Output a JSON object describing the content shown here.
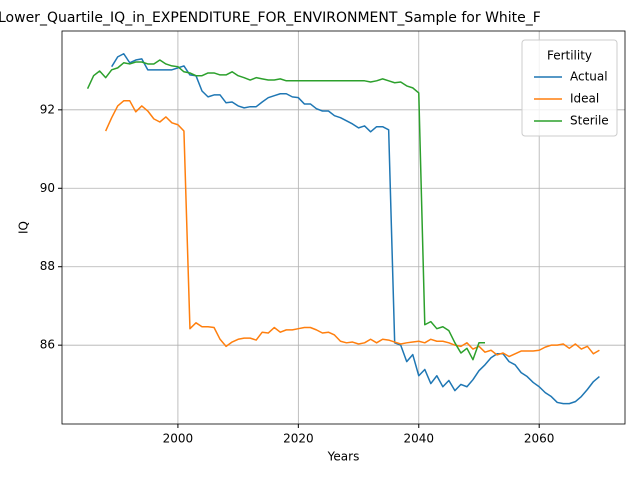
{
  "chart_data": {
    "type": "line",
    "title": "Lower_Quartile_IQ_in_EXPENDITURE_FOR_ENVIRONMENT_Sample for White_F",
    "xlabel": "Years",
    "ylabel": "IQ",
    "x": [
      1985,
      1986,
      1987,
      1988,
      1989,
      1990,
      1991,
      1992,
      1993,
      1994,
      1995,
      1996,
      1997,
      1998,
      1999,
      2000,
      2001,
      2002,
      2003,
      2004,
      2005,
      2006,
      2007,
      2008,
      2009,
      2010,
      2011,
      2012,
      2013,
      2014,
      2015,
      2016,
      2017,
      2018,
      2019,
      2020,
      2021,
      2022,
      2023,
      2024,
      2025,
      2026,
      2027,
      2028,
      2029,
      2030,
      2031,
      2032,
      2033,
      2034,
      2035,
      2036,
      2037,
      2038,
      2039,
      2040,
      2041,
      2042,
      2043,
      2044,
      2045,
      2046,
      2047,
      2048,
      2049,
      2050,
      2051,
      2052,
      2053,
      2054,
      2055,
      2056,
      2057,
      2058,
      2059,
      2060,
      2061,
      2062,
      2063,
      2064,
      2065,
      2066,
      2067,
      2068,
      2069,
      2070
    ],
    "series": [
      {
        "name": "Actual",
        "color": "#1f77b4",
        "values": [
          null,
          null,
          null,
          null,
          93.1,
          93.35,
          93.43,
          93.2,
          93.27,
          93.3,
          93.02,
          93.02,
          93.02,
          93.02,
          93.02,
          93.07,
          93.12,
          92.89,
          92.87,
          92.48,
          92.33,
          92.38,
          92.38,
          92.18,
          92.2,
          92.1,
          92.05,
          92.08,
          92.08,
          92.2,
          92.31,
          92.36,
          92.41,
          92.41,
          92.33,
          92.31,
          92.15,
          92.15,
          92.03,
          91.97,
          91.97,
          91.85,
          91.8,
          91.72,
          91.64,
          91.54,
          91.59,
          91.44,
          91.57,
          91.57,
          91.49,
          86.06,
          86.0,
          85.58,
          85.76,
          85.22,
          85.38,
          85.02,
          85.22,
          84.94,
          85.1,
          84.84,
          85.0,
          84.94,
          85.12,
          85.35,
          85.5,
          85.68,
          85.78,
          85.78,
          85.58,
          85.5,
          85.3,
          85.2,
          85.05,
          84.94,
          84.79,
          84.69,
          84.54,
          84.51,
          84.51,
          84.56,
          84.69,
          84.87,
          85.07,
          85.2
        ]
      },
      {
        "name": "Ideal",
        "color": "#ff7f0e",
        "values": [
          null,
          null,
          null,
          91.46,
          91.8,
          92.1,
          92.23,
          92.23,
          91.95,
          92.1,
          91.97,
          91.77,
          91.69,
          91.82,
          91.67,
          91.62,
          91.46,
          86.42,
          86.57,
          86.47,
          86.47,
          86.45,
          86.15,
          85.97,
          86.08,
          86.15,
          86.18,
          86.18,
          86.13,
          86.33,
          86.31,
          86.45,
          86.33,
          86.39,
          86.39,
          86.42,
          86.45,
          86.45,
          86.39,
          86.31,
          86.33,
          86.26,
          86.1,
          86.06,
          86.08,
          86.03,
          86.06,
          86.15,
          86.06,
          86.15,
          86.13,
          86.08,
          86.03,
          86.06,
          86.08,
          86.1,
          86.06,
          86.15,
          86.1,
          86.1,
          86.06,
          86.0,
          85.97,
          86.06,
          85.9,
          85.97,
          85.82,
          85.87,
          85.75,
          85.8,
          85.71,
          85.78,
          85.85,
          85.85,
          85.85,
          85.87,
          85.95,
          86.0,
          86.0,
          86.03,
          85.92,
          86.03,
          85.9,
          85.97,
          85.78,
          85.87
        ]
      },
      {
        "name": "Sterile",
        "color": "#2ca02c",
        "values": [
          92.54,
          92.87,
          92.99,
          92.82,
          93.02,
          93.07,
          93.2,
          93.17,
          93.22,
          93.22,
          93.17,
          93.17,
          93.27,
          93.17,
          93.12,
          93.1,
          92.97,
          92.94,
          92.87,
          92.87,
          92.94,
          92.94,
          92.89,
          92.89,
          92.97,
          92.87,
          92.82,
          92.76,
          92.82,
          92.79,
          92.76,
          92.76,
          92.79,
          92.74,
          92.74,
          92.74,
          92.74,
          92.74,
          92.74,
          92.74,
          92.74,
          92.74,
          92.74,
          92.74,
          92.74,
          92.74,
          92.74,
          92.71,
          92.74,
          92.79,
          92.74,
          92.69,
          92.71,
          92.61,
          92.56,
          92.43,
          86.52,
          86.6,
          86.42,
          86.47,
          86.37,
          86.06,
          85.8,
          85.92,
          85.63,
          86.06,
          86.06,
          null,
          null,
          null,
          null,
          null,
          null,
          null,
          null,
          null,
          null,
          null,
          null,
          null,
          null,
          null,
          null,
          null,
          null,
          null
        ]
      }
    ],
    "xlim": [
      1980.75,
      2074.25
    ],
    "xticks": [
      2000,
      2020,
      2040,
      2060
    ],
    "ylim": [
      83.99,
      94.01
    ],
    "yticks": [
      86,
      88,
      90,
      92
    ],
    "grid": true,
    "legend_title": "Fertility",
    "legend_position": "upper right"
  }
}
